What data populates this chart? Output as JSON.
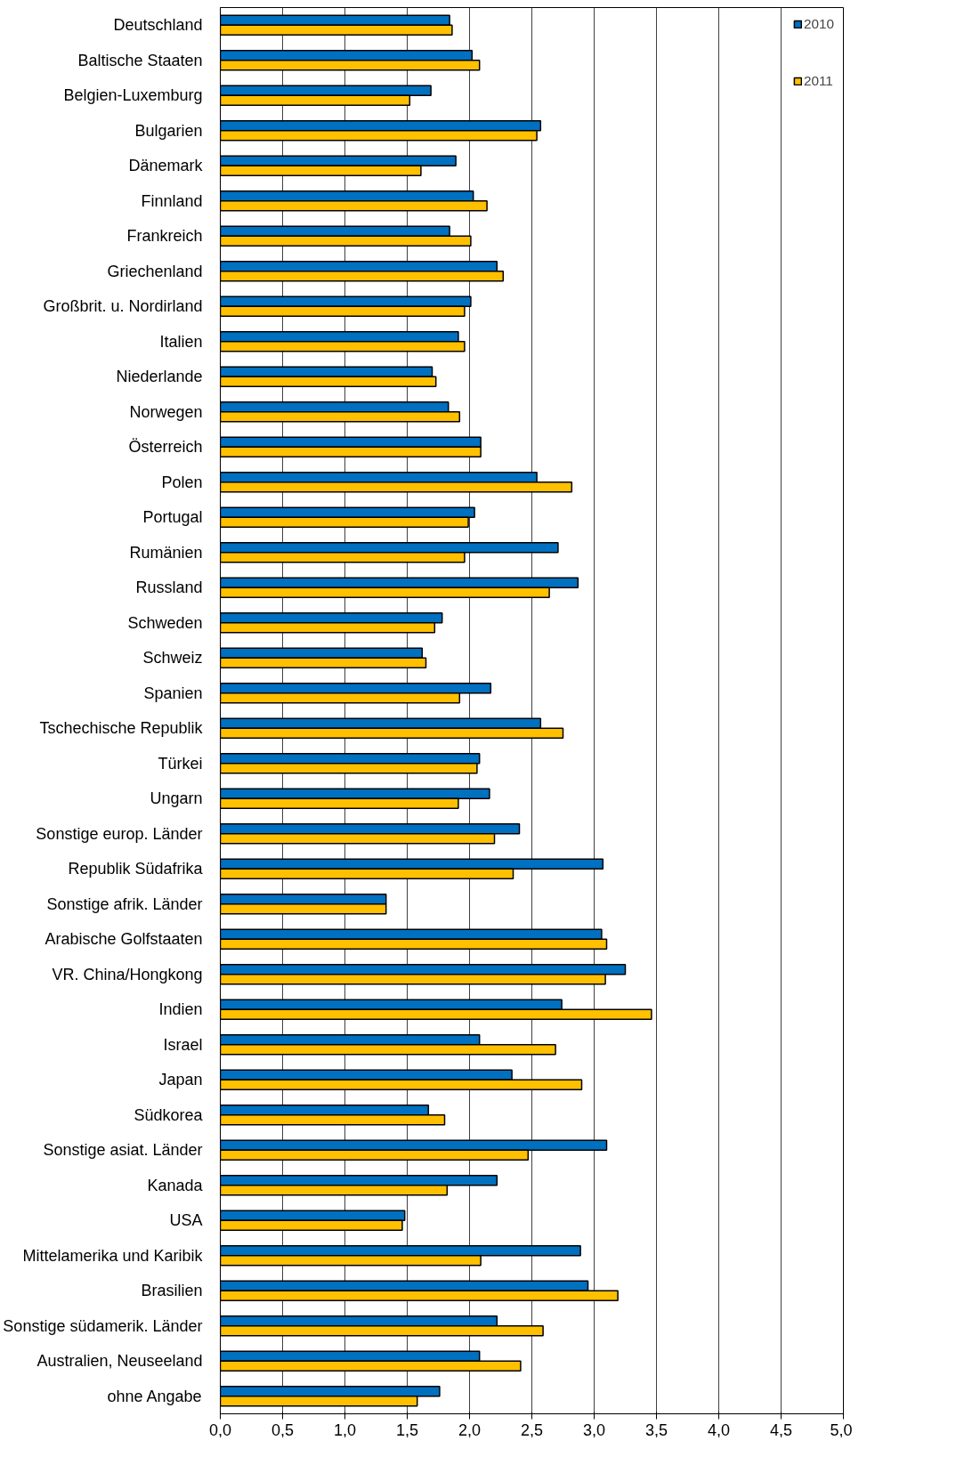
{
  "chart_data": {
    "type": "bar",
    "orientation": "horizontal",
    "categories": [
      "Deutschland",
      "Baltische Staaten",
      "Belgien-Luxemburg",
      "Bulgarien",
      "Dänemark",
      "Finnland",
      "Frankreich",
      "Griechenland",
      "Großbrit. u. Nordirland",
      "Italien",
      "Niederlande",
      "Norwegen",
      "Österreich",
      "Polen",
      "Portugal",
      "Rumänien",
      "Russland",
      "Schweden",
      "Schweiz",
      "Spanien",
      "Tschechische Republik",
      "Türkei",
      "Ungarn",
      "Sonstige europ. Länder",
      "Republik Südafrika",
      "Sonstige afrik. Länder",
      "Arabische Golfstaaten",
      "VR. China/Hongkong",
      "Indien",
      "Israel",
      "Japan",
      "Südkorea",
      "Sonstige asiat. Länder",
      "Kanada",
      "USA",
      "Mittelamerika und Karibik",
      "Brasilien",
      "Sonstige südamerik. Länder",
      "Australien, Neuseeland",
      "ohne Angabe"
    ],
    "series": [
      {
        "name": "2010",
        "color": "#0070c0",
        "values": [
          1.84,
          2.02,
          1.69,
          2.57,
          1.89,
          2.03,
          1.84,
          2.22,
          2.01,
          1.91,
          1.7,
          1.83,
          2.09,
          2.54,
          2.04,
          2.71,
          2.87,
          1.78,
          1.62,
          2.17,
          2.57,
          2.08,
          2.16,
          2.4,
          3.07,
          1.33,
          3.06,
          3.25,
          2.74,
          2.08,
          2.34,
          1.67,
          3.1,
          2.22,
          1.48,
          2.89,
          2.95,
          2.22,
          2.08,
          1.76
        ]
      },
      {
        "name": "2011",
        "color": "#ffc000",
        "values": [
          1.86,
          2.08,
          1.52,
          2.54,
          1.61,
          2.14,
          2.01,
          2.27,
          1.96,
          1.96,
          1.73,
          1.92,
          2.09,
          2.82,
          1.99,
          1.96,
          2.64,
          1.72,
          1.65,
          1.92,
          2.75,
          2.06,
          1.91,
          2.2,
          2.35,
          1.33,
          3.1,
          3.09,
          3.46,
          2.69,
          2.9,
          1.8,
          2.47,
          1.82,
          1.46,
          2.09,
          3.19,
          2.59,
          2.41,
          1.58
        ]
      }
    ],
    "xlim": [
      0,
      5
    ],
    "xticks": [
      {
        "value": 0,
        "label": "0,0"
      },
      {
        "value": 0.5,
        "label": "0,5"
      },
      {
        "value": 1,
        "label": "1,0"
      },
      {
        "value": 1.5,
        "label": "1,5"
      },
      {
        "value": 2,
        "label": "2,0"
      },
      {
        "value": 2.5,
        "label": "2,5"
      },
      {
        "value": 3,
        "label": "3,0"
      },
      {
        "value": 3.5,
        "label": "3,5"
      },
      {
        "value": 4,
        "label": "4,0"
      },
      {
        "value": 4.5,
        "label": "4,5"
      },
      {
        "value": 5,
        "label": "5,0"
      }
    ],
    "grid": "x",
    "legend": "top right"
  }
}
